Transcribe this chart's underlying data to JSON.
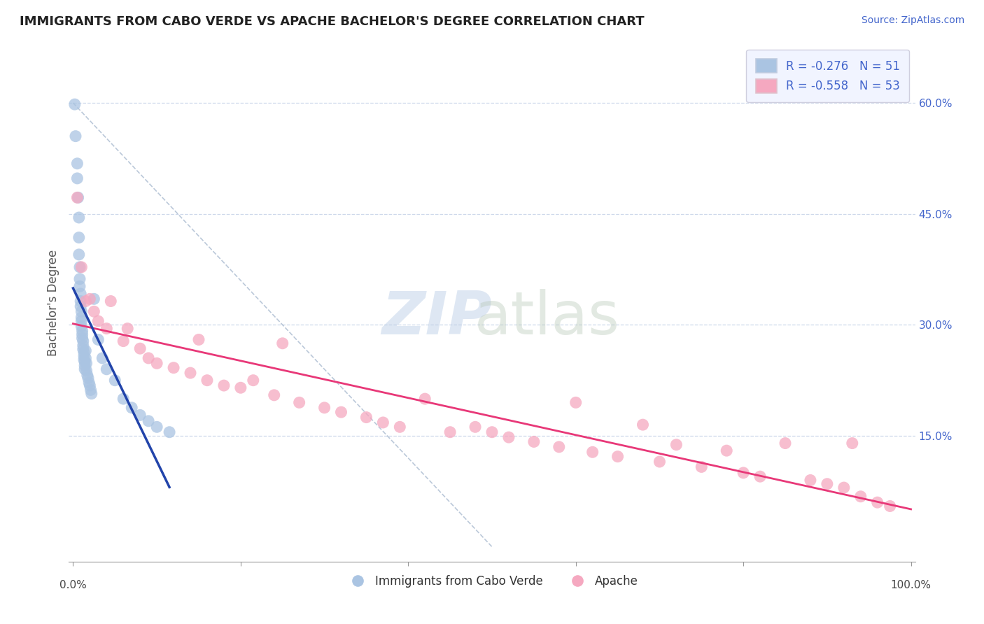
{
  "title": "IMMIGRANTS FROM CABO VERDE VS APACHE BACHELOR'S DEGREE CORRELATION CHART",
  "source": "Source: ZipAtlas.com",
  "ylabel": "Bachelor's Degree",
  "x_lim": [
    -0.005,
    1.005
  ],
  "y_lim": [
    -0.02,
    0.68
  ],
  "blue_label": "Immigrants from Cabo Verde",
  "pink_label": "Apache",
  "blue_R": -0.276,
  "blue_N": 51,
  "pink_R": -0.558,
  "pink_N": 53,
  "blue_color": "#aac4e2",
  "pink_color": "#f5a8c0",
  "blue_line_color": "#2244aa",
  "pink_line_color": "#e83878",
  "dashed_line_color": "#aabbd0",
  "background_color": "#ffffff",
  "grid_color": "#c8d4e8",
  "title_color": "#222222",
  "axis_label_color": "#4466cc",
  "legend_box_color": "#f0f4ff",
  "ytick_vals": [
    0.0,
    0.15,
    0.3,
    0.45,
    0.6
  ],
  "xtick_vals": [
    0.0,
    0.2,
    0.4,
    0.6,
    0.8,
    1.0
  ],
  "blue_points": [
    [
      0.002,
      0.598
    ],
    [
      0.003,
      0.555
    ],
    [
      0.005,
      0.518
    ],
    [
      0.005,
      0.498
    ],
    [
      0.006,
      0.472
    ],
    [
      0.007,
      0.445
    ],
    [
      0.007,
      0.418
    ],
    [
      0.007,
      0.395
    ],
    [
      0.008,
      0.378
    ],
    [
      0.008,
      0.362
    ],
    [
      0.008,
      0.352
    ],
    [
      0.009,
      0.342
    ],
    [
      0.009,
      0.332
    ],
    [
      0.009,
      0.325
    ],
    [
      0.01,
      0.318
    ],
    [
      0.01,
      0.31
    ],
    [
      0.01,
      0.305
    ],
    [
      0.01,
      0.298
    ],
    [
      0.011,
      0.292
    ],
    [
      0.011,
      0.287
    ],
    [
      0.011,
      0.282
    ],
    [
      0.012,
      0.278
    ],
    [
      0.012,
      0.272
    ],
    [
      0.012,
      0.267
    ],
    [
      0.013,
      0.263
    ],
    [
      0.013,
      0.258
    ],
    [
      0.013,
      0.253
    ],
    [
      0.014,
      0.25
    ],
    [
      0.014,
      0.245
    ],
    [
      0.014,
      0.24
    ],
    [
      0.015,
      0.265
    ],
    [
      0.015,
      0.255
    ],
    [
      0.016,
      0.248
    ],
    [
      0.016,
      0.238
    ],
    [
      0.017,
      0.232
    ],
    [
      0.018,
      0.228
    ],
    [
      0.019,
      0.222
    ],
    [
      0.02,
      0.218
    ],
    [
      0.021,
      0.212
    ],
    [
      0.022,
      0.207
    ],
    [
      0.025,
      0.335
    ],
    [
      0.03,
      0.28
    ],
    [
      0.035,
      0.255
    ],
    [
      0.04,
      0.24
    ],
    [
      0.05,
      0.225
    ],
    [
      0.06,
      0.2
    ],
    [
      0.07,
      0.188
    ],
    [
      0.08,
      0.178
    ],
    [
      0.09,
      0.17
    ],
    [
      0.1,
      0.162
    ],
    [
      0.115,
      0.155
    ]
  ],
  "pink_points": [
    [
      0.005,
      0.472
    ],
    [
      0.01,
      0.378
    ],
    [
      0.015,
      0.332
    ],
    [
      0.02,
      0.335
    ],
    [
      0.025,
      0.318
    ],
    [
      0.03,
      0.305
    ],
    [
      0.04,
      0.295
    ],
    [
      0.045,
      0.332
    ],
    [
      0.06,
      0.278
    ],
    [
      0.065,
      0.295
    ],
    [
      0.08,
      0.268
    ],
    [
      0.09,
      0.255
    ],
    [
      0.1,
      0.248
    ],
    [
      0.12,
      0.242
    ],
    [
      0.14,
      0.235
    ],
    [
      0.15,
      0.28
    ],
    [
      0.16,
      0.225
    ],
    [
      0.18,
      0.218
    ],
    [
      0.2,
      0.215
    ],
    [
      0.215,
      0.225
    ],
    [
      0.24,
      0.205
    ],
    [
      0.25,
      0.275
    ],
    [
      0.27,
      0.195
    ],
    [
      0.3,
      0.188
    ],
    [
      0.32,
      0.182
    ],
    [
      0.35,
      0.175
    ],
    [
      0.37,
      0.168
    ],
    [
      0.39,
      0.162
    ],
    [
      0.42,
      0.2
    ],
    [
      0.45,
      0.155
    ],
    [
      0.48,
      0.162
    ],
    [
      0.5,
      0.155
    ],
    [
      0.52,
      0.148
    ],
    [
      0.55,
      0.142
    ],
    [
      0.58,
      0.135
    ],
    [
      0.6,
      0.195
    ],
    [
      0.62,
      0.128
    ],
    [
      0.65,
      0.122
    ],
    [
      0.68,
      0.165
    ],
    [
      0.7,
      0.115
    ],
    [
      0.72,
      0.138
    ],
    [
      0.75,
      0.108
    ],
    [
      0.78,
      0.13
    ],
    [
      0.8,
      0.1
    ],
    [
      0.82,
      0.095
    ],
    [
      0.85,
      0.14
    ],
    [
      0.88,
      0.09
    ],
    [
      0.9,
      0.085
    ],
    [
      0.92,
      0.08
    ],
    [
      0.93,
      0.14
    ],
    [
      0.94,
      0.068
    ],
    [
      0.96,
      0.06
    ],
    [
      0.975,
      0.055
    ]
  ]
}
